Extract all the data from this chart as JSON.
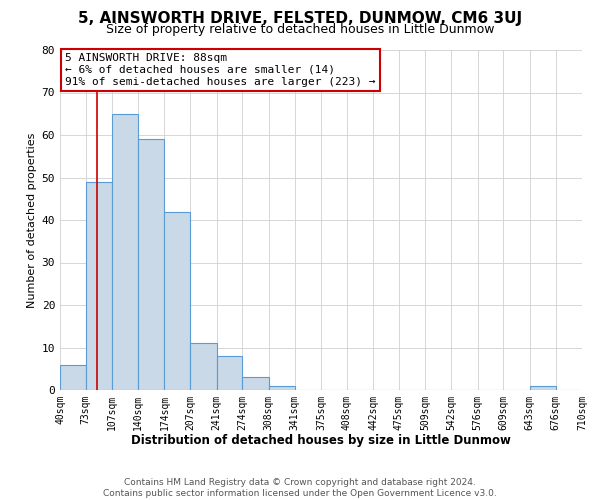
{
  "title": "5, AINSWORTH DRIVE, FELSTED, DUNMOW, CM6 3UJ",
  "subtitle": "Size of property relative to detached houses in Little Dunmow",
  "xlabel": "Distribution of detached houses by size in Little Dunmow",
  "ylabel": "Number of detached properties",
  "bin_edges": [
    40,
    73,
    107,
    140,
    174,
    207,
    241,
    274,
    308,
    341,
    375,
    408,
    442,
    475,
    509,
    542,
    576,
    609,
    643,
    676,
    710
  ],
  "bin_counts": [
    6,
    49,
    65,
    59,
    42,
    11,
    8,
    3,
    1,
    0,
    0,
    0,
    0,
    0,
    0,
    0,
    0,
    0,
    1,
    0
  ],
  "bar_facecolor": "#c9d9e8",
  "bar_edgecolor": "#5b9bd5",
  "grid_color": "#d0d0d0",
  "background_color": "#ffffff",
  "property_line_x": 88,
  "property_line_color": "#cc0000",
  "annotation_box_edgecolor": "#cc0000",
  "annotation_text_line1": "5 AINSWORTH DRIVE: 88sqm",
  "annotation_text_line2": "← 6% of detached houses are smaller (14)",
  "annotation_text_line3": "91% of semi-detached houses are larger (223) →",
  "footer_line1": "Contains HM Land Registry data © Crown copyright and database right 2024.",
  "footer_line2": "Contains public sector information licensed under the Open Government Licence v3.0.",
  "tick_labels": [
    "40sqm",
    "73sqm",
    "107sqm",
    "140sqm",
    "174sqm",
    "207sqm",
    "241sqm",
    "274sqm",
    "308sqm",
    "341sqm",
    "375sqm",
    "408sqm",
    "442sqm",
    "475sqm",
    "509sqm",
    "542sqm",
    "576sqm",
    "609sqm",
    "643sqm",
    "676sqm",
    "710sqm"
  ],
  "ylim": [
    0,
    80
  ],
  "yticks": [
    0,
    10,
    20,
    30,
    40,
    50,
    60,
    70,
    80
  ],
  "title_fontsize": 11,
  "subtitle_fontsize": 9,
  "xlabel_fontsize": 8.5,
  "ylabel_fontsize": 8,
  "tick_fontsize": 7,
  "annotation_fontsize": 8,
  "footer_fontsize": 6.5
}
